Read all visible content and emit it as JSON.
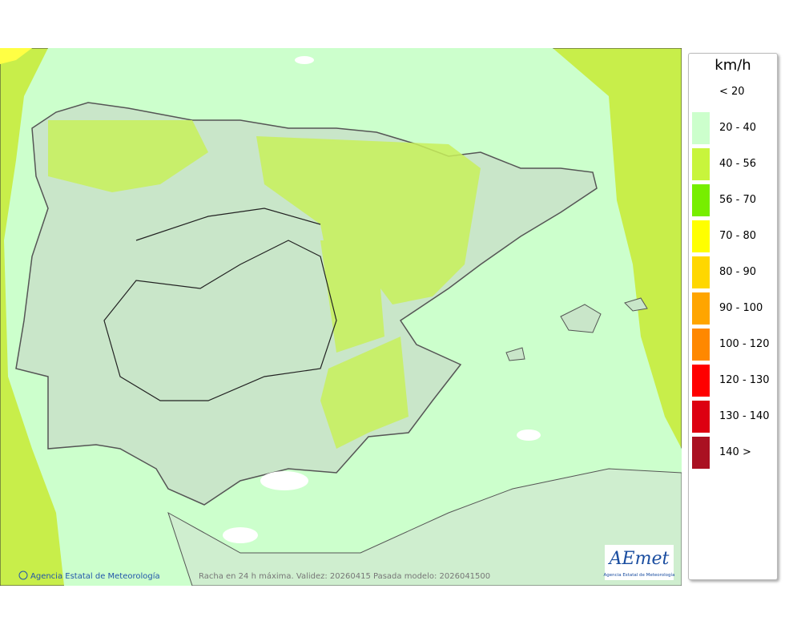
{
  "map": {
    "footer_credit": "Agencia Estatal de Meteorología",
    "footer_caption": "Racha en 24 h máxima. Validez: 20260415 Pasada modelo: 2026041500",
    "logo": {
      "title": "AEmet",
      "subtitle": "Agencia Estatal de Meteorología"
    }
  },
  "legend": {
    "unit": "km/h",
    "entries": [
      {
        "label": "< 20",
        "color": "#ffffff"
      },
      {
        "label": "20 - 40",
        "color": "#ccffcc"
      },
      {
        "label": "40 - 56",
        "color": "#c8f53c"
      },
      {
        "label": "56 - 70",
        "color": "#77ee00"
      },
      {
        "label": "70 - 80",
        "color": "#ffff00"
      },
      {
        "label": "80 - 90",
        "color": "#ffd700"
      },
      {
        "label": "90 - 100",
        "color": "#ffa500"
      },
      {
        "label": "100 - 120",
        "color": "#ff8800"
      },
      {
        "label": "120 - 130",
        "color": "#ff0000"
      },
      {
        "label": "130 - 140",
        "color": "#dd0011"
      },
      {
        "label": "140 >",
        "color": "#aa1122"
      }
    ]
  }
}
